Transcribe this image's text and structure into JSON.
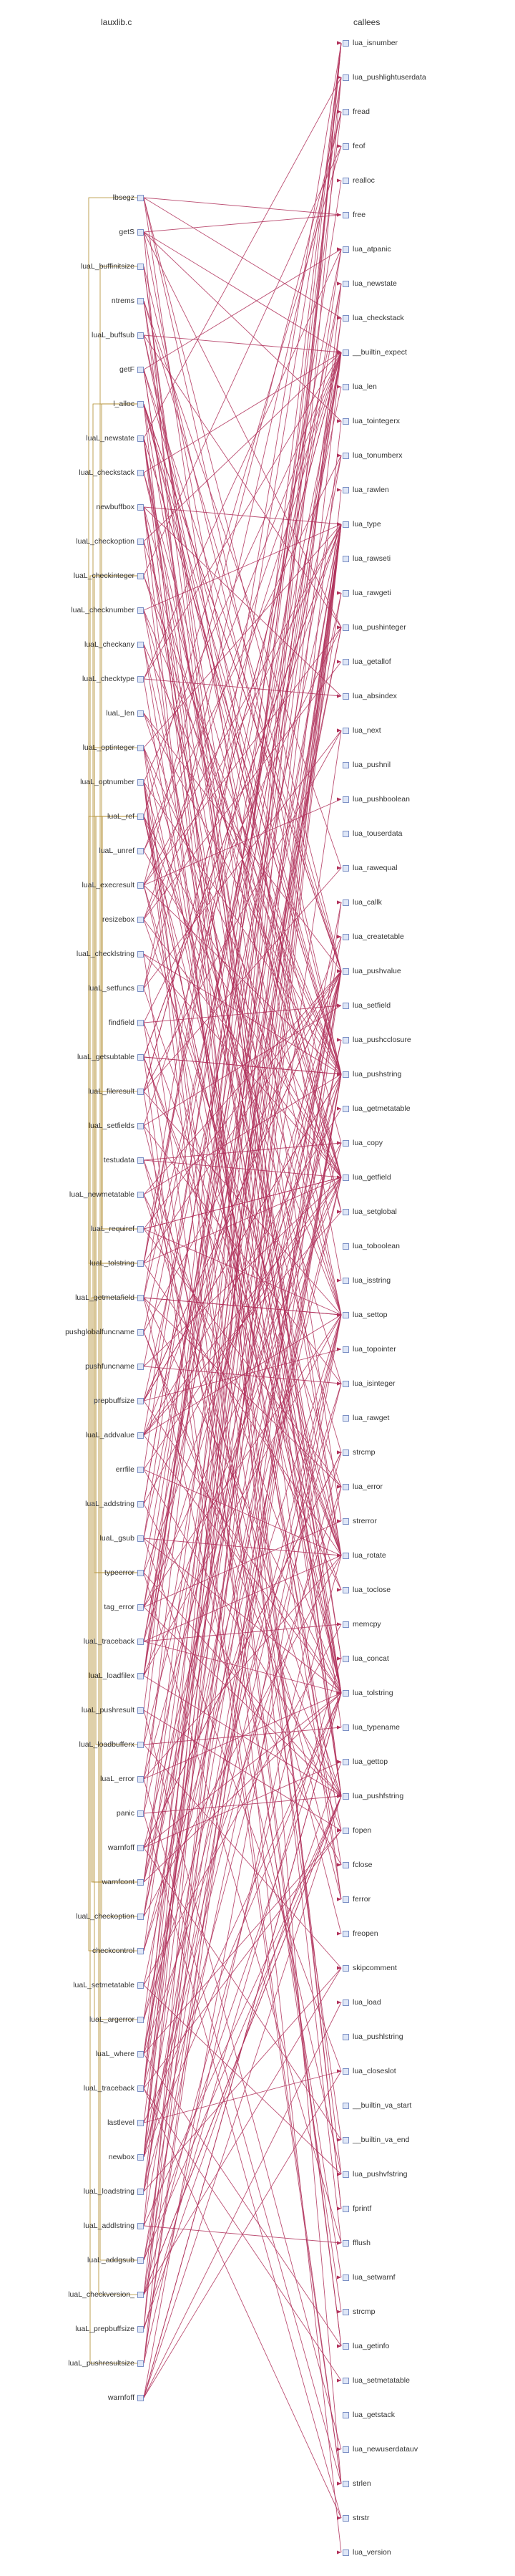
{
  "headers": {
    "left": "lauxlib.c",
    "right": "callees"
  },
  "colors": {
    "edge": "#b0305a",
    "intra": "#b08a2a",
    "box_fill": "#dfe7f7",
    "box_stroke": "#7b8fc4",
    "text": "#333333"
  },
  "left_nodes": [
    "lbsegz",
    "getS",
    "luaL_buffinitsize",
    "ntrems",
    "luaL_buffsub",
    "getF",
    "l_alloc",
    "luaL_newstate",
    "luaL_checkstack",
    "newbuffbox",
    "luaL_checkoption",
    "luaL_checkinteger",
    "luaL_checknumber",
    "luaL_checkany",
    "luaL_checktype",
    "luaL_len",
    "luaL_optinteger",
    "luaL_optnumber",
    "luaL_ref",
    "luaL_unref",
    "luaL_execresult",
    "resizebox",
    "luaL_checklstring",
    "luaL_setfuncs",
    "findfield",
    "luaL_getsubtable",
    "luaL_fileresult",
    "luaL_setfields",
    "testudata",
    "luaL_newmetatable",
    "luaL_requiref",
    "luaL_tolstring",
    "luaL_getmetafield",
    "pushglobalfuncname",
    "pushfuncname",
    "prepbuffsize",
    "luaL_addvalue",
    "errfile",
    "luaL_addstring",
    "luaL_gsub",
    "typeerror",
    "tag_error",
    "luaL_traceback",
    "luaL_loadfilex",
    "luaL_pushresult",
    "luaL_loadbufferx",
    "luaL_error",
    "panic",
    "warnfoff",
    "warnfcont",
    "luaL_checkoption",
    "checkcontrol",
    "luaL_setmetatable",
    "luaL_argerror",
    "luaL_where",
    "luaL_traceback",
    "lastlevel",
    "newbox",
    "luaL_loadstring",
    "luaL_addlstring",
    "luaL_addgsub",
    "luaL_checkversion_",
    "luaL_prepbuffsize",
    "luaL_pushresultsize",
    "warnfoff"
  ],
  "right_nodes": [
    "lua_isnumber",
    "lua_pushlightuserdata",
    "fread",
    "feof",
    "realloc",
    "free",
    "lua_atpanic",
    "lua_newstate",
    "lua_checkstack",
    "__builtin_expect",
    "lua_len",
    "lua_tointegerx",
    "lua_tonumberx",
    "lua_rawlen",
    "lua_type",
    "lua_rawseti",
    "lua_rawgeti",
    "lua_pushinteger",
    "lua_getallof",
    "lua_absindex",
    "lua_next",
    "lua_pushnil",
    "lua_pushboolean",
    "lua_touserdata",
    "lua_rawequal",
    "lua_callk",
    "lua_createtable",
    "lua_pushvalue",
    "lua_setfield",
    "lua_pushcclosure",
    "lua_pushstring",
    "lua_getmetatable",
    "lua_copy",
    "lua_getfield",
    "lua_setglobal",
    "lua_toboolean",
    "lua_isstring",
    "lua_settop",
    "lua_topointer",
    "lua_isinteger",
    "lua_rawget",
    "strcmp",
    "lua_error",
    "strerror",
    "lua_rotate",
    "lua_toclose",
    "memcpy",
    "lua_concat",
    "lua_tolstring",
    "lua_typename",
    "lua_gettop",
    "lua_pushfstring",
    "fopen",
    "fclose",
    "ferror",
    "freopen",
    "skipcomment",
    "lua_load",
    "lua_pushlstring",
    "lua_closeslot",
    "__builtin_va_start",
    "__builtin_va_end",
    "lua_pushvfstring",
    "fprintf",
    "fflush",
    "lua_setwarnf",
    "strcmp",
    "lua_getinfo",
    "lua_setmetatable",
    "lua_getstack",
    "lua_newuserdatauv",
    "strlen",
    "strstr",
    "lua_version"
  ]
}
